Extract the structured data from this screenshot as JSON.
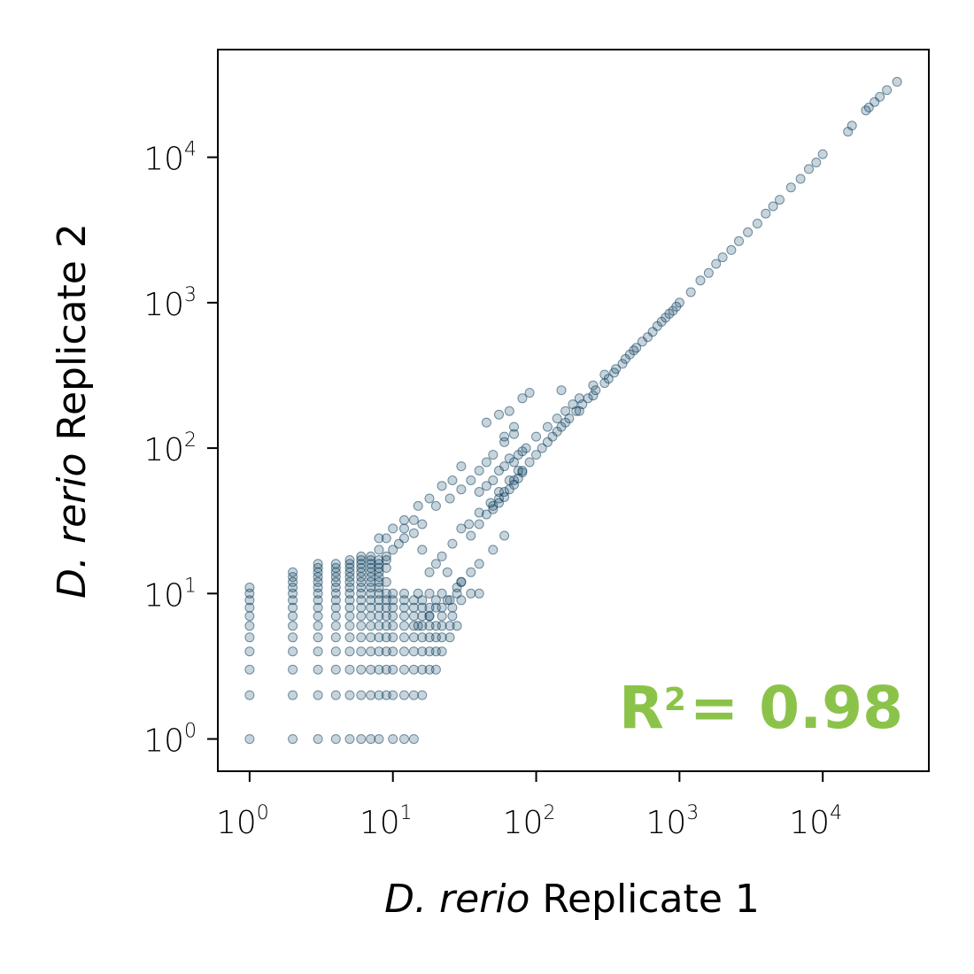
{
  "chart_data": {
    "type": "scatter",
    "title": "",
    "xlabel": {
      "italic": "D. rerio",
      "rest": " Replicate 1"
    },
    "ylabel": {
      "italic": "D. rerio",
      "rest": " Replicate 2"
    },
    "xscale": "log",
    "yscale": "log",
    "xlim": [
      0.6,
      55000
    ],
    "ylim": [
      0.6,
      55000
    ],
    "ticks": [
      {
        "base": "10",
        "exp": "0",
        "value": 1
      },
      {
        "base": "10",
        "exp": "1",
        "value": 10
      },
      {
        "base": "10",
        "exp": "2",
        "value": 100
      },
      {
        "base": "10",
        "exp": "3",
        "value": 1000
      },
      {
        "base": "10",
        "exp": "4",
        "value": 10000
      }
    ],
    "annotation": {
      "base": "R",
      "exp": "2",
      "text": "= 0.98",
      "color": "#8bc34a"
    },
    "marker_color": "#053b5a",
    "marker_opacity": 0.22,
    "grid": false,
    "points": [
      [
        1,
        1
      ],
      [
        2,
        1
      ],
      [
        3,
        1
      ],
      [
        4,
        1
      ],
      [
        5,
        1
      ],
      [
        6,
        1
      ],
      [
        7,
        1
      ],
      [
        8,
        1
      ],
      [
        10,
        1
      ],
      [
        12,
        1
      ],
      [
        14,
        1
      ],
      [
        1,
        2
      ],
      [
        2,
        2
      ],
      [
        3,
        2
      ],
      [
        4,
        2
      ],
      [
        5,
        2
      ],
      [
        6,
        2
      ],
      [
        7,
        2
      ],
      [
        8,
        2
      ],
      [
        9,
        2
      ],
      [
        10,
        2
      ],
      [
        12,
        2
      ],
      [
        14,
        2
      ],
      [
        16,
        2
      ],
      [
        1,
        3
      ],
      [
        2,
        3
      ],
      [
        3,
        3
      ],
      [
        4,
        3
      ],
      [
        5,
        3
      ],
      [
        6,
        3
      ],
      [
        7,
        3
      ],
      [
        8,
        3
      ],
      [
        9,
        3
      ],
      [
        10,
        3
      ],
      [
        12,
        3
      ],
      [
        14,
        3
      ],
      [
        16,
        3
      ],
      [
        18,
        3
      ],
      [
        20,
        3
      ],
      [
        1,
        4
      ],
      [
        2,
        4
      ],
      [
        3,
        4
      ],
      [
        4,
        4
      ],
      [
        5,
        4
      ],
      [
        6,
        4
      ],
      [
        7,
        4
      ],
      [
        8,
        4
      ],
      [
        9,
        4
      ],
      [
        10,
        4
      ],
      [
        12,
        4
      ],
      [
        14,
        4
      ],
      [
        16,
        4
      ],
      [
        18,
        4
      ],
      [
        20,
        4
      ],
      [
        22,
        4
      ],
      [
        1,
        5
      ],
      [
        2,
        5
      ],
      [
        3,
        5
      ],
      [
        4,
        5
      ],
      [
        5,
        5
      ],
      [
        6,
        5
      ],
      [
        7,
        5
      ],
      [
        8,
        5
      ],
      [
        9,
        5
      ],
      [
        10,
        5
      ],
      [
        12,
        5
      ],
      [
        14,
        5
      ],
      [
        16,
        5
      ],
      [
        18,
        5
      ],
      [
        20,
        5
      ],
      [
        22,
        5
      ],
      [
        25,
        5
      ],
      [
        1,
        6
      ],
      [
        2,
        6
      ],
      [
        3,
        6
      ],
      [
        4,
        6
      ],
      [
        5,
        6
      ],
      [
        6,
        6
      ],
      [
        7,
        6
      ],
      [
        8,
        6
      ],
      [
        9,
        6
      ],
      [
        10,
        6
      ],
      [
        12,
        6
      ],
      [
        14,
        6
      ],
      [
        16,
        6
      ],
      [
        18,
        6
      ],
      [
        20,
        6
      ],
      [
        22,
        6
      ],
      [
        25,
        6
      ],
      [
        28,
        6
      ],
      [
        1,
        7
      ],
      [
        2,
        7
      ],
      [
        3,
        7
      ],
      [
        4,
        7
      ],
      [
        5,
        7
      ],
      [
        6,
        7
      ],
      [
        7,
        7
      ],
      [
        8,
        7
      ],
      [
        9,
        7
      ],
      [
        10,
        7
      ],
      [
        12,
        7
      ],
      [
        14,
        7
      ],
      [
        16,
        7
      ],
      [
        18,
        7
      ],
      [
        22,
        7
      ],
      [
        26,
        7
      ],
      [
        1,
        8
      ],
      [
        2,
        8
      ],
      [
        3,
        8
      ],
      [
        4,
        8
      ],
      [
        5,
        8
      ],
      [
        6,
        8
      ],
      [
        7,
        8
      ],
      [
        8,
        8
      ],
      [
        9,
        8
      ],
      [
        10,
        8
      ],
      [
        12,
        8
      ],
      [
        14,
        8
      ],
      [
        16,
        8
      ],
      [
        18,
        8
      ],
      [
        22,
        8
      ],
      [
        26,
        8
      ],
      [
        1,
        9
      ],
      [
        2,
        9
      ],
      [
        3,
        9
      ],
      [
        4,
        9
      ],
      [
        5,
        9
      ],
      [
        6,
        9
      ],
      [
        7,
        9
      ],
      [
        8,
        9
      ],
      [
        9,
        9
      ],
      [
        10,
        9
      ],
      [
        12,
        9
      ],
      [
        14,
        9
      ],
      [
        16,
        9
      ],
      [
        20,
        9
      ],
      [
        24,
        9
      ],
      [
        30,
        9
      ],
      [
        1,
        10
      ],
      [
        2,
        10
      ],
      [
        3,
        10
      ],
      [
        4,
        10
      ],
      [
        5,
        10
      ],
      [
        6,
        10
      ],
      [
        7,
        10
      ],
      [
        8,
        10
      ],
      [
        9,
        10
      ],
      [
        10,
        10
      ],
      [
        12,
        10
      ],
      [
        15,
        10
      ],
      [
        18,
        10
      ],
      [
        22,
        10
      ],
      [
        28,
        10
      ],
      [
        35,
        10
      ],
      [
        1,
        11
      ],
      [
        2,
        11
      ],
      [
        3,
        11
      ],
      [
        4,
        11
      ],
      [
        5,
        11
      ],
      [
        6,
        11
      ],
      [
        7,
        11
      ],
      [
        8,
        11
      ],
      [
        2,
        12
      ],
      [
        3,
        12
      ],
      [
        4,
        12
      ],
      [
        5,
        12
      ],
      [
        6,
        12
      ],
      [
        7,
        12
      ],
      [
        8,
        12
      ],
      [
        9,
        12
      ],
      [
        2,
        13
      ],
      [
        3,
        13
      ],
      [
        4,
        13
      ],
      [
        5,
        13
      ],
      [
        6,
        13
      ],
      [
        7,
        13
      ],
      [
        8,
        13
      ],
      [
        2,
        14
      ],
      [
        3,
        14
      ],
      [
        4,
        14
      ],
      [
        5,
        14
      ],
      [
        6,
        14
      ],
      [
        7,
        14
      ],
      [
        8,
        14
      ],
      [
        3,
        15
      ],
      [
        4,
        15
      ],
      [
        5,
        15
      ],
      [
        6,
        15
      ],
      [
        7,
        15
      ],
      [
        8,
        15
      ],
      [
        9,
        15
      ],
      [
        3,
        16
      ],
      [
        4,
        16
      ],
      [
        5,
        16
      ],
      [
        6,
        16
      ],
      [
        7,
        16
      ],
      [
        8,
        16
      ],
      [
        5,
        17
      ],
      [
        6,
        17
      ],
      [
        7,
        17
      ],
      [
        8,
        17
      ],
      [
        9,
        17
      ],
      [
        6,
        18
      ],
      [
        7,
        18
      ],
      [
        9,
        18
      ],
      [
        10,
        20
      ],
      [
        11,
        22
      ],
      [
        12,
        24
      ],
      [
        14,
        26
      ],
      [
        16,
        30
      ],
      [
        8,
        20
      ],
      [
        9,
        24
      ],
      [
        12,
        28
      ],
      [
        14,
        32
      ],
      [
        16,
        20
      ],
      [
        20,
        16
      ],
      [
        24,
        14
      ],
      [
        30,
        12
      ],
      [
        40,
        10
      ],
      [
        18,
        14
      ],
      [
        22,
        18
      ],
      [
        26,
        22
      ],
      [
        30,
        28
      ],
      [
        34,
        30
      ],
      [
        40,
        36
      ],
      [
        48,
        42
      ],
      [
        55,
        50
      ],
      [
        65,
        60
      ],
      [
        75,
        70
      ],
      [
        20,
        40
      ],
      [
        25,
        45
      ],
      [
        30,
        52
      ],
      [
        35,
        60
      ],
      [
        40,
        70
      ],
      [
        45,
        80
      ],
      [
        50,
        90
      ],
      [
        60,
        110
      ],
      [
        70,
        125
      ],
      [
        50,
        40
      ],
      [
        55,
        45
      ],
      [
        60,
        50
      ],
      [
        70,
        60
      ],
      [
        80,
        70
      ],
      [
        90,
        80
      ],
      [
        100,
        90
      ],
      [
        120,
        110
      ],
      [
        140,
        130
      ],
      [
        160,
        150
      ],
      [
        100,
        120
      ],
      [
        120,
        140
      ],
      [
        140,
        160
      ],
      [
        160,
        180
      ],
      [
        180,
        200
      ],
      [
        200,
        220
      ],
      [
        250,
        270
      ],
      [
        300,
        320
      ],
      [
        200,
        180
      ],
      [
        250,
        230
      ],
      [
        300,
        280
      ],
      [
        350,
        330
      ],
      [
        400,
        380
      ],
      [
        450,
        440
      ],
      [
        500,
        490
      ],
      [
        600,
        580
      ],
      [
        700,
        690
      ],
      [
        800,
        790
      ],
      [
        900,
        880
      ],
      [
        1000,
        1000
      ],
      [
        1200,
        1180
      ],
      [
        1400,
        1420
      ],
      [
        1600,
        1600
      ],
      [
        1800,
        1850
      ],
      [
        2000,
        2050
      ],
      [
        2300,
        2300
      ],
      [
        2600,
        2650
      ],
      [
        3000,
        3050
      ],
      [
        3500,
        3500
      ],
      [
        4000,
        4100
      ],
      [
        4500,
        4600
      ],
      [
        5000,
        5100
      ],
      [
        6000,
        6200
      ],
      [
        7000,
        7100
      ],
      [
        8000,
        8300
      ],
      [
        9000,
        9200
      ],
      [
        10000,
        10500
      ],
      [
        15000,
        15000
      ],
      [
        16000,
        16500
      ],
      [
        20000,
        21000
      ],
      [
        21000,
        22000
      ],
      [
        23000,
        24000
      ],
      [
        25000,
        26000
      ],
      [
        28000,
        29000
      ],
      [
        33000,
        33000
      ],
      [
        8,
        24
      ],
      [
        10,
        28
      ],
      [
        12,
        32
      ],
      [
        15,
        40
      ],
      [
        18,
        45
      ],
      [
        22,
        55
      ],
      [
        26,
        60
      ],
      [
        30,
        75
      ],
      [
        15,
        6
      ],
      [
        18,
        7
      ],
      [
        20,
        8
      ],
      [
        25,
        9
      ],
      [
        28,
        11
      ],
      [
        30,
        12
      ],
      [
        35,
        14
      ],
      [
        40,
        16
      ],
      [
        50,
        20
      ],
      [
        60,
        25
      ],
      [
        45,
        150
      ],
      [
        55,
        170
      ],
      [
        65,
        180
      ],
      [
        80,
        220
      ],
      [
        90,
        240
      ],
      [
        60,
        120
      ],
      [
        70,
        140
      ],
      [
        150,
        250
      ],
      [
        40,
        50
      ],
      [
        45,
        55
      ],
      [
        50,
        60
      ],
      [
        55,
        70
      ],
      [
        60,
        75
      ],
      [
        65,
        85
      ],
      [
        70,
        80
      ],
      [
        75,
        90
      ],
      [
        80,
        95
      ],
      [
        85,
        100
      ],
      [
        110,
        100
      ],
      [
        130,
        120
      ],
      [
        150,
        140
      ],
      [
        170,
        160
      ],
      [
        190,
        180
      ],
      [
        210,
        200
      ],
      [
        230,
        220
      ],
      [
        260,
        250
      ],
      [
        320,
        300
      ],
      [
        360,
        350
      ],
      [
        420,
        410
      ],
      [
        480,
        470
      ],
      [
        550,
        540
      ],
      [
        650,
        630
      ],
      [
        750,
        740
      ],
      [
        850,
        840
      ],
      [
        950,
        940
      ],
      [
        35,
        25
      ],
      [
        40,
        30
      ],
      [
        45,
        35
      ],
      [
        50,
        38
      ],
      [
        55,
        42
      ],
      [
        60,
        46
      ],
      [
        65,
        52
      ],
      [
        70,
        56
      ],
      [
        75,
        62
      ],
      [
        80,
        68
      ]
    ]
  }
}
